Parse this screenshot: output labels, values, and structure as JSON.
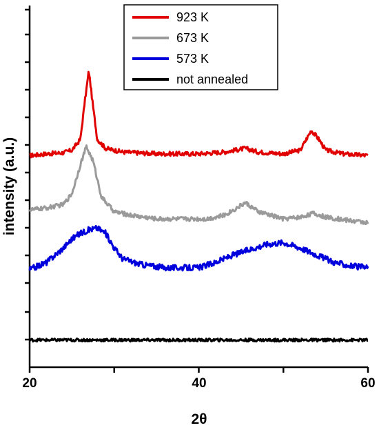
{
  "chart_data": {
    "type": "line",
    "xlabel": "2θ",
    "ylabel": "intensity (a.u.)",
    "xlim": [
      20,
      60
    ],
    "xticks": [
      "20",
      "40",
      "60"
    ],
    "yticks_labeled": false,
    "grid": false,
    "legend_position": "top-center",
    "series": [
      {
        "name": "923 K",
        "color": "#e00000",
        "points": [
          [
            20,
            0.585
          ],
          [
            22,
            0.59
          ],
          [
            24,
            0.593
          ],
          [
            25,
            0.6
          ],
          [
            26,
            0.63
          ],
          [
            26.5,
            0.73
          ],
          [
            27,
            0.82
          ],
          [
            27.5,
            0.72
          ],
          [
            28,
            0.63
          ],
          [
            29,
            0.605
          ],
          [
            31,
            0.595
          ],
          [
            35,
            0.59
          ],
          [
            40,
            0.59
          ],
          [
            43,
            0.595
          ],
          [
            45.5,
            0.605
          ],
          [
            47,
            0.595
          ],
          [
            50,
            0.59
          ],
          [
            52,
            0.6
          ],
          [
            53.3,
            0.655
          ],
          [
            54.2,
            0.63
          ],
          [
            55,
            0.6
          ],
          [
            57,
            0.59
          ],
          [
            60,
            0.585
          ]
        ]
      },
      {
        "name": "673 K",
        "color": "#9a9a9a",
        "points": [
          [
            20,
            0.435
          ],
          [
            22,
            0.44
          ],
          [
            24,
            0.45
          ],
          [
            25,
            0.48
          ],
          [
            26,
            0.56
          ],
          [
            26.7,
            0.61
          ],
          [
            27.5,
            0.57
          ],
          [
            28.5,
            0.47
          ],
          [
            30,
            0.43
          ],
          [
            32,
            0.42
          ],
          [
            35,
            0.41
          ],
          [
            38,
            0.41
          ],
          [
            41,
            0.41
          ],
          [
            43,
            0.42
          ],
          [
            44.5,
            0.44
          ],
          [
            45.5,
            0.455
          ],
          [
            47,
            0.43
          ],
          [
            50,
            0.41
          ],
          [
            52,
            0.415
          ],
          [
            53.5,
            0.425
          ],
          [
            55,
            0.415
          ],
          [
            58,
            0.405
          ],
          [
            60,
            0.4
          ]
        ]
      },
      {
        "name": "573 K",
        "color": "#0000dd",
        "points": [
          [
            20,
            0.27
          ],
          [
            21,
            0.28
          ],
          [
            22,
            0.29
          ],
          [
            23,
            0.31
          ],
          [
            24,
            0.33
          ],
          [
            25,
            0.355
          ],
          [
            26,
            0.37
          ],
          [
            27,
            0.38
          ],
          [
            28,
            0.385
          ],
          [
            29,
            0.37
          ],
          [
            30,
            0.33
          ],
          [
            31,
            0.3
          ],
          [
            33,
            0.285
          ],
          [
            36,
            0.275
          ],
          [
            40,
            0.275
          ],
          [
            42,
            0.29
          ],
          [
            44,
            0.31
          ],
          [
            46,
            0.325
          ],
          [
            48,
            0.34
          ],
          [
            50,
            0.345
          ],
          [
            52,
            0.33
          ],
          [
            54,
            0.31
          ],
          [
            56,
            0.29
          ],
          [
            58,
            0.28
          ],
          [
            60,
            0.275
          ]
        ]
      },
      {
        "name": "not annealed",
        "color": "#000000",
        "points": [
          [
            20,
            0.075
          ],
          [
            25,
            0.075
          ],
          [
            30,
            0.075
          ],
          [
            35,
            0.075
          ],
          [
            40,
            0.075
          ],
          [
            45,
            0.075
          ],
          [
            50,
            0.075
          ],
          [
            55,
            0.075
          ],
          [
            60,
            0.075
          ]
        ]
      }
    ]
  }
}
